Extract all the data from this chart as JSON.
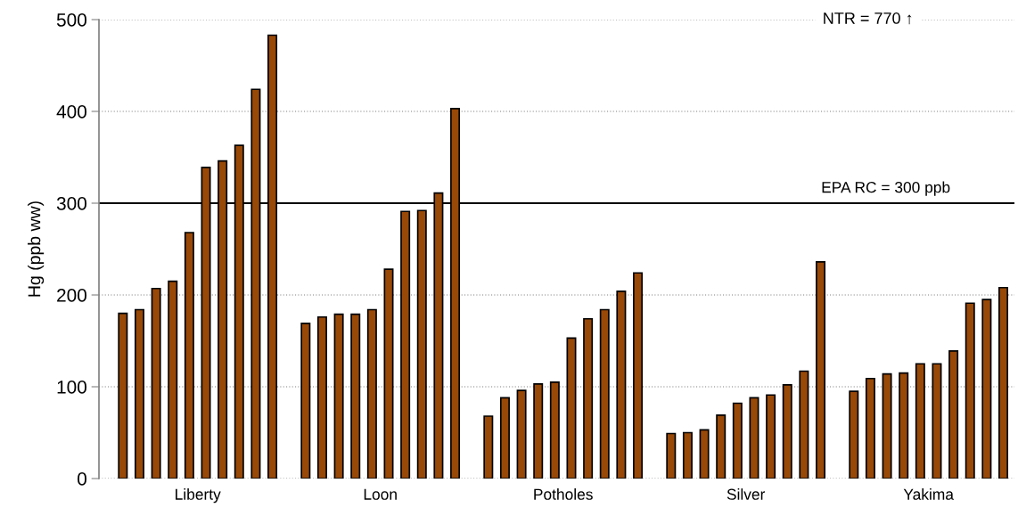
{
  "chart_data": {
    "type": "bar",
    "ylabel": "Hg (ppb ww)",
    "categories": [
      "Liberty",
      "Loon",
      "Potholes",
      "Silver",
      "Yakima"
    ],
    "series": [
      {
        "color": "#984807",
        "values": [
          180,
          169,
          68,
          49,
          95
        ]
      },
      {
        "color": "#984807",
        "values": [
          184,
          176,
          88,
          50,
          109
        ]
      },
      {
        "color": "#984807",
        "values": [
          207,
          179,
          96,
          53,
          114
        ]
      },
      {
        "color": "#984807",
        "values": [
          215,
          179,
          103,
          69,
          115
        ]
      },
      {
        "color": "#984807",
        "values": [
          268,
          184,
          105,
          82,
          125
        ]
      },
      {
        "color": "#984807",
        "values": [
          339,
          228,
          153,
          88,
          125
        ]
      },
      {
        "color": "#984807",
        "values": [
          346,
          291,
          174,
          91,
          139
        ]
      },
      {
        "color": "#984807",
        "values": [
          363,
          292,
          184,
          102,
          191
        ]
      },
      {
        "color": "#984807",
        "values": [
          424,
          311,
          204,
          117,
          195
        ]
      },
      {
        "color": "#984807",
        "values": [
          483,
          403,
          224,
          236,
          208
        ]
      }
    ],
    "ylim": [
      0,
      500
    ],
    "yticks": [
      0,
      100,
      200,
      300,
      400,
      500
    ],
    "grid": "y",
    "ref_lines": [
      {
        "axis": "y",
        "value": 300,
        "label": "EPA RC = 300 ppb",
        "color": "#000000",
        "line_style": "solid"
      }
    ],
    "annotations": [
      "NTR = 770 ↑"
    ]
  }
}
